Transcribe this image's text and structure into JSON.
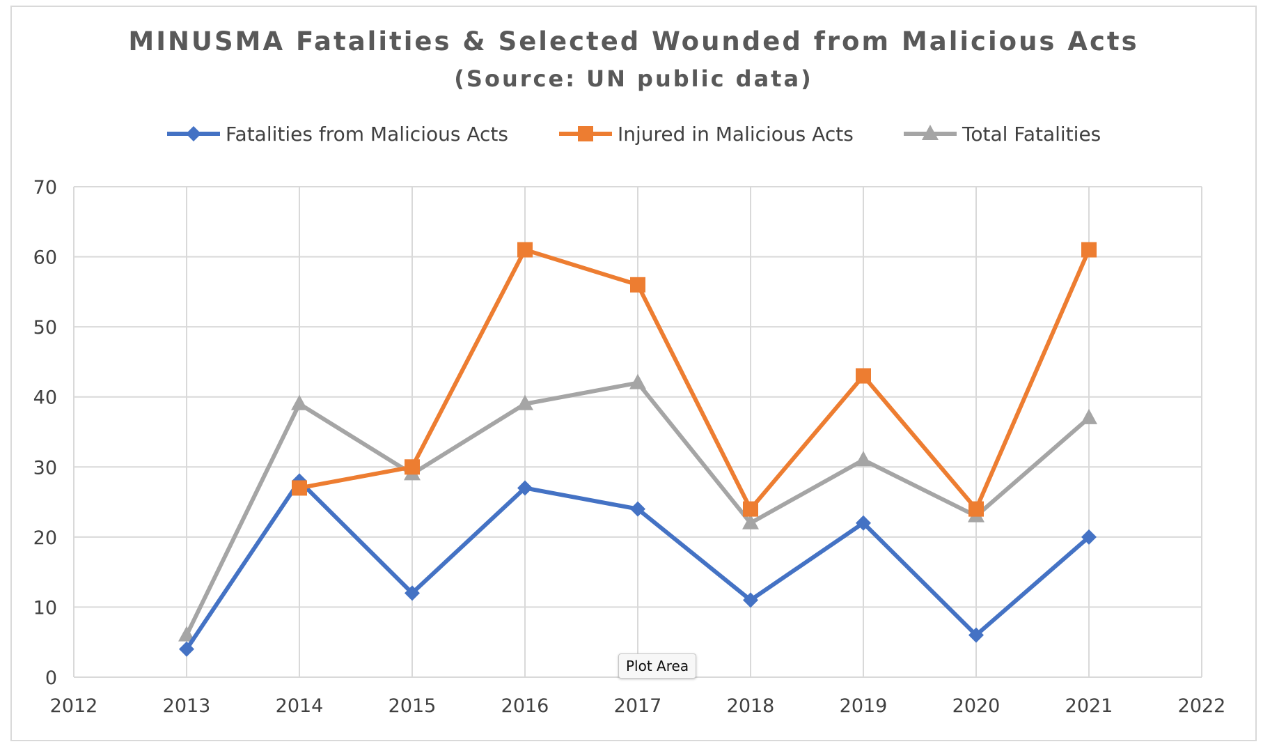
{
  "chart_data": {
    "type": "line",
    "title": "MINUSMA Fatalities & Selected Wounded from Malicious Acts",
    "subtitle": "(Source: UN public data)",
    "xlabel": "",
    "ylabel": "",
    "xlim": [
      2012,
      2022
    ],
    "ylim": [
      0,
      70
    ],
    "xticks": [
      2012,
      2013,
      2014,
      2015,
      2016,
      2017,
      2018,
      2019,
      2020,
      2021,
      2022
    ],
    "yticks": [
      0,
      10,
      20,
      30,
      40,
      50,
      60,
      70
    ],
    "grid": true,
    "legend_position": "top",
    "series": [
      {
        "name": "Fatalities from Malicious Acts",
        "color": "#4472c4",
        "marker": "diamond",
        "points": [
          [
            2013,
            4
          ],
          [
            2014,
            28
          ],
          [
            2015,
            12
          ],
          [
            2016,
            27
          ],
          [
            2017,
            24
          ],
          [
            2018,
            11
          ],
          [
            2019,
            22
          ],
          [
            2020,
            6
          ],
          [
            2021,
            20
          ]
        ]
      },
      {
        "name": "Injured in Malicious Acts",
        "color": "#ed7d31",
        "marker": "square",
        "points": [
          [
            2014,
            27
          ],
          [
            2015,
            30
          ],
          [
            2016,
            61
          ],
          [
            2017,
            56
          ],
          [
            2018,
            24
          ],
          [
            2019,
            43
          ],
          [
            2020,
            24
          ],
          [
            2021,
            61
          ]
        ]
      },
      {
        "name": "Total Fatalities",
        "color": "#a5a5a5",
        "marker": "triangle",
        "points": [
          [
            2013,
            6
          ],
          [
            2014,
            39
          ],
          [
            2015,
            29
          ],
          [
            2016,
            39
          ],
          [
            2017,
            42
          ],
          [
            2018,
            22
          ],
          [
            2019,
            31
          ],
          [
            2020,
            23
          ],
          [
            2021,
            37
          ]
        ]
      }
    ]
  },
  "tooltip": {
    "label": "Plot Area"
  }
}
